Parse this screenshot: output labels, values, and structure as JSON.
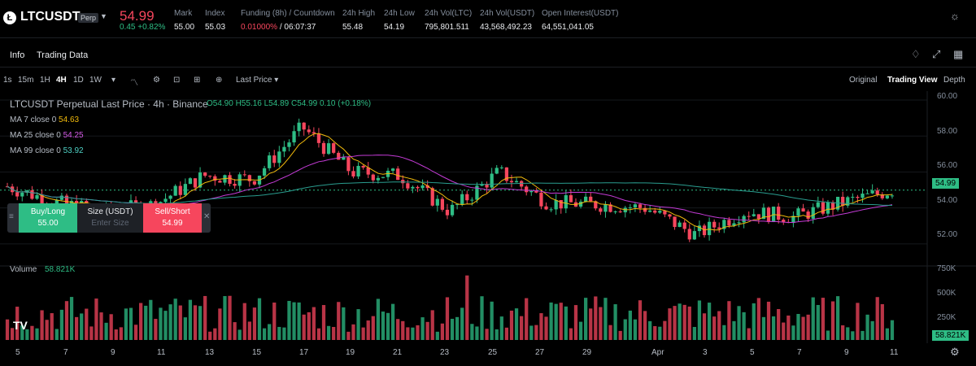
{
  "header": {
    "logo_letter": "Ł",
    "symbol": "LTCUSDT",
    "badge": "Perp",
    "price": "54.99",
    "change": "0.45 +0.82%",
    "stats": {
      "mark_label": "Mark",
      "mark": "55.00",
      "index_label": "Index",
      "index": "55.03",
      "funding_label": "Funding (8h) / Countdown",
      "funding_rate": "0.01000%",
      "funding_countdown": "/ 06:07:37",
      "high_label": "24h High",
      "high": "55.48",
      "low_label": "24h Low",
      "low": "54.19",
      "vol_ltc_label": "24h Vol(LTC)",
      "vol_ltc": "795,801.511",
      "vol_usdt_label": "24h Vol(USDT)",
      "vol_usdt": "43,568,492.23",
      "oi_label": "Open Interest(USDT)",
      "oi": "64,551,041.05"
    }
  },
  "tabs": {
    "info": "Info",
    "trading_data": "Trading Data"
  },
  "toolbar": {
    "intervals": [
      "1s",
      "15m",
      "1H",
      "4H",
      "1D",
      "1W"
    ],
    "active_interval": "4H",
    "price_type": "Last Price",
    "views": [
      "Original",
      "Trading View",
      "Depth"
    ],
    "active_view": "Trading View"
  },
  "chart_legend": {
    "title": "LTCUSDT Perpetual Last Price · 4h · Binance",
    "ohlc": "O54.90  H55.16  L54.89  C54.99  0.10 (+0.18%)",
    "ma7_label": "MA 7 close 0",
    "ma7": "54.63",
    "ma25_label": "MA 25 close 0",
    "ma25": "54.25",
    "ma99_label": "MA 99 close 0",
    "ma99": "53.92",
    "ma_colors": {
      "ma7": "#f0b90b",
      "ma25": "#c43bd6",
      "ma99": "#2a9d8f"
    }
  },
  "trade_panel": {
    "buy_label": "Buy/Long",
    "buy_price": "55.00",
    "size_label": "Size (USDT)",
    "size_placeholder": "Enter Size",
    "sell_label": "Sell/Short",
    "sell_price": "54.99"
  },
  "price_axis": [
    "60.00",
    "58.00",
    "56.00",
    "54.00",
    "52.00"
  ],
  "last_price_tag": "54.99",
  "volume": {
    "title": "Volume",
    "value": "58.821K",
    "axis": [
      "750K",
      "500K",
      "250K"
    ],
    "tag": "58.821K"
  },
  "x_axis": [
    "5",
    "7",
    "9",
    "11",
    "13",
    "15",
    "17",
    "19",
    "21",
    "23",
    "25",
    "27",
    "29",
    "Apr",
    "3",
    "5",
    "7",
    "9",
    "11"
  ],
  "colors": {
    "up": "#2ebd85",
    "down": "#f6465d",
    "bg": "#000000"
  },
  "chart_data": {
    "type": "candlestick",
    "interval": "4h",
    "price_range": [
      51,
      60.5
    ],
    "anchors": [
      {
        "x": "5",
        "price": 55.2
      },
      {
        "x": "7",
        "price": 54.3
      },
      {
        "x": "9",
        "price": 53.8
      },
      {
        "x": "11",
        "price": 54.2
      },
      {
        "x": "13",
        "price": 55.8
      },
      {
        "x": "15",
        "price": 55.6
      },
      {
        "x": "17",
        "price": 58.5
      },
      {
        "x": "19",
        "price": 56.0
      },
      {
        "x": "21",
        "price": 55.8
      },
      {
        "x": "23",
        "price": 53.8
      },
      {
        "x": "25",
        "price": 56.0
      },
      {
        "x": "27",
        "price": 54.3
      },
      {
        "x": "29",
        "price": 54.2
      },
      {
        "x": "Apr",
        "price": 54.0
      },
      {
        "x": "3",
        "price": 52.5
      },
      {
        "x": "5",
        "price": 53.8
      },
      {
        "x": "7",
        "price": 53.5
      },
      {
        "x": "9",
        "price": 54.3
      },
      {
        "x": "11",
        "price": 54.99
      }
    ]
  }
}
